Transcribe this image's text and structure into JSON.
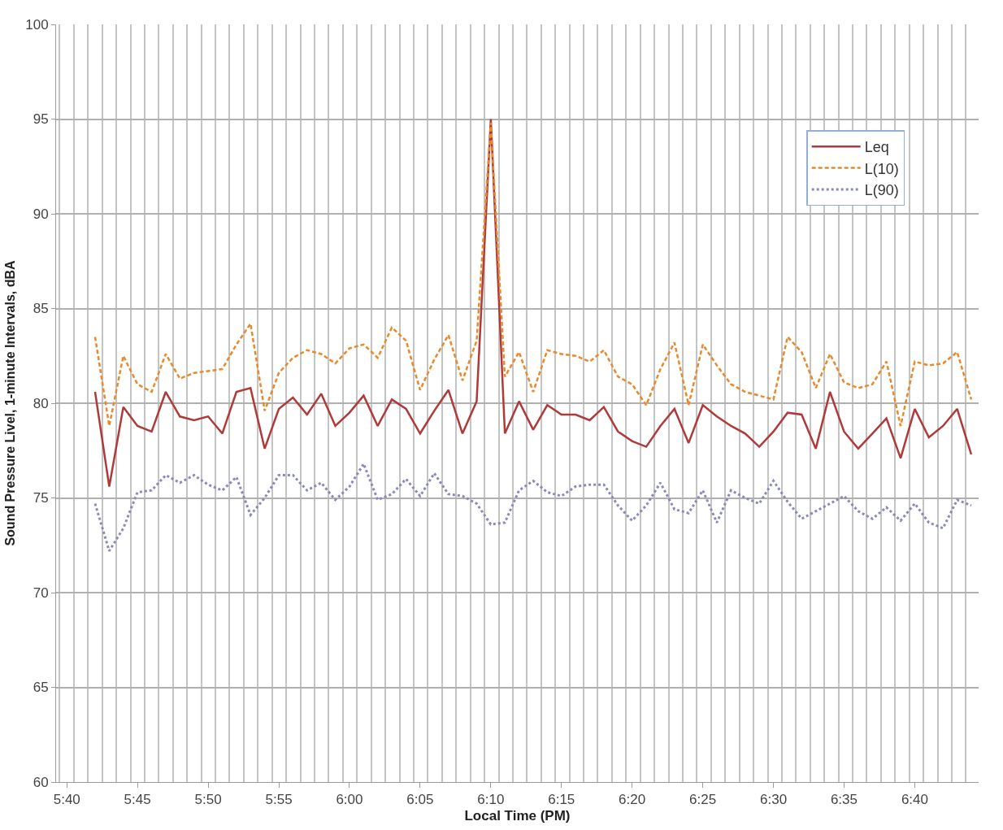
{
  "chart_data": {
    "type": "line",
    "xlabel": "Local Time (PM)",
    "ylabel": "Sound Pressure Livel, 1-minute Intervals, dBA",
    "x": [
      5.7,
      5.7167,
      5.7333,
      5.75,
      5.7667,
      5.7833,
      5.8,
      5.8167,
      5.8333,
      5.85,
      5.8667,
      5.8833,
      5.9,
      5.9167,
      5.9333,
      5.95,
      5.9667,
      5.9833,
      6.0,
      6.0167,
      6.0333,
      6.05,
      6.0667,
      6.0833,
      6.1,
      6.1167,
      6.1333,
      6.15,
      6.1667,
      6.1833,
      6.2,
      6.2167,
      6.2333,
      6.25,
      6.2667,
      6.2833,
      6.3,
      6.3167,
      6.3333,
      6.35,
      6.3667,
      6.3833,
      6.4,
      6.4167,
      6.4333,
      6.45,
      6.4667,
      6.4833,
      6.5,
      6.5167,
      6.5333,
      6.55,
      6.5667,
      6.5833,
      6.6,
      6.6167,
      6.6333,
      6.65,
      6.6667,
      6.6833,
      6.7,
      6.7167,
      6.7333
    ],
    "series": [
      {
        "name": "Leq",
        "color": "#b03a3a",
        "line_style": "solid",
        "values": [
          80.6,
          75.6,
          79.8,
          78.8,
          78.5,
          80.6,
          79.3,
          79.1,
          79.3,
          78.4,
          80.6,
          80.8,
          77.6,
          79.7,
          80.3,
          79.4,
          80.5,
          78.8,
          79.5,
          80.4,
          78.8,
          80.2,
          79.7,
          78.4,
          79.6,
          80.7,
          78.4,
          80.1,
          95.0,
          78.4,
          80.1,
          78.6,
          79.9,
          79.4,
          79.4,
          79.1,
          79.8,
          78.5,
          78.0,
          77.7,
          78.8,
          79.7,
          77.9,
          79.9,
          79.3,
          78.8,
          78.4,
          77.7,
          78.5,
          79.5,
          79.4,
          77.6,
          80.6,
          78.5,
          77.6,
          78.4,
          79.2,
          77.1,
          79.7,
          78.2,
          78.8,
          79.7,
          77.3
        ]
      },
      {
        "name": "L(10)",
        "color": "#e8892b",
        "line_style": "dashed",
        "values": [
          83.5,
          78.8,
          82.5,
          81.0,
          80.6,
          82.6,
          81.3,
          81.6,
          81.7,
          81.8,
          83.1,
          84.2,
          79.6,
          81.6,
          82.4,
          82.8,
          82.6,
          82.1,
          82.9,
          83.1,
          82.4,
          84.0,
          83.3,
          80.7,
          82.3,
          83.6,
          81.2,
          83.3,
          94.8,
          81.4,
          82.7,
          80.6,
          82.8,
          82.6,
          82.5,
          82.2,
          82.8,
          81.4,
          81.0,
          79.9,
          81.8,
          83.2,
          79.9,
          83.1,
          82.0,
          81.0,
          80.6,
          80.4,
          80.2,
          83.5,
          82.7,
          80.8,
          82.6,
          81.1,
          80.8,
          81.0,
          82.2,
          78.8,
          82.2,
          82.0,
          82.1,
          82.7,
          80.2
        ]
      },
      {
        "name": "L(90)",
        "color": "#8a8ab8",
        "line_style": "dotted",
        "values": [
          74.7,
          72.2,
          73.4,
          75.3,
          75.4,
          76.2,
          75.8,
          76.2,
          75.7,
          75.4,
          76.1,
          74.1,
          75.0,
          76.2,
          76.2,
          75.4,
          75.8,
          74.9,
          75.6,
          76.8,
          74.9,
          75.2,
          76.0,
          75.1,
          76.3,
          75.2,
          75.1,
          74.7,
          73.6,
          73.7,
          75.4,
          75.9,
          75.3,
          75.1,
          75.6,
          75.7,
          75.7,
          74.6,
          73.8,
          74.6,
          75.8,
          74.4,
          74.2,
          75.4,
          73.7,
          75.4,
          75.0,
          74.7,
          75.9,
          74.8,
          73.9,
          74.3,
          74.7,
          75.1,
          74.3,
          73.9,
          74.5,
          73.8,
          74.7,
          73.7,
          73.4,
          74.9,
          74.6
        ]
      }
    ],
    "xlim": [
      5.654,
      6.742
    ],
    "xticks": [
      {
        "value": 5.6667,
        "label": "5:40"
      },
      {
        "value": 5.75,
        "label": "5:45"
      },
      {
        "value": 5.8333,
        "label": "5:50"
      },
      {
        "value": 5.9167,
        "label": "5:55"
      },
      {
        "value": 6.0,
        "label": "6:00"
      },
      {
        "value": 6.0833,
        "label": "6:05"
      },
      {
        "value": 6.1667,
        "label": "6:10"
      },
      {
        "value": 6.25,
        "label": "6:15"
      },
      {
        "value": 6.3333,
        "label": "6:20"
      },
      {
        "value": 6.4167,
        "label": "6:25"
      },
      {
        "value": 6.5,
        "label": "6:30"
      },
      {
        "value": 6.5833,
        "label": "6:35"
      },
      {
        "value": 6.6667,
        "label": "6:40"
      }
    ],
    "ylim": [
      60,
      100
    ],
    "yticks": [
      60,
      65,
      70,
      75,
      80,
      85,
      90,
      95,
      100
    ],
    "grid": true,
    "legend": "top right",
    "marker": "none"
  }
}
